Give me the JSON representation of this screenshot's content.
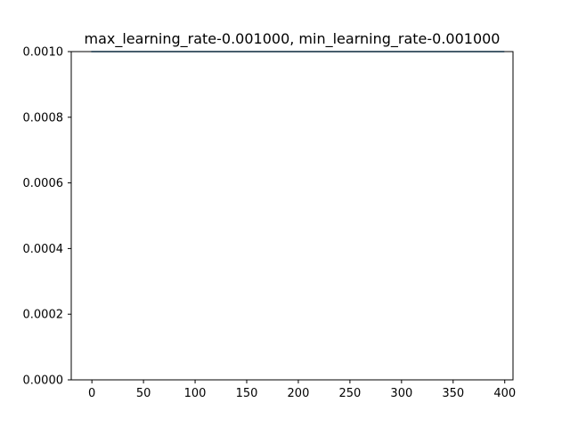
{
  "chart_data": {
    "type": "line",
    "title": "max_learning_rate-0.001000, min_learning_rate-0.001000",
    "xlabel": "",
    "ylabel": "",
    "xlim": [
      -20,
      408
    ],
    "ylim": [
      0,
      0.001
    ],
    "x_ticks": [
      0,
      50,
      100,
      150,
      200,
      250,
      300,
      350,
      400
    ],
    "x_tick_labels": [
      "0",
      "50",
      "100",
      "150",
      "200",
      "250",
      "300",
      "350",
      "400"
    ],
    "y_ticks": [
      0,
      0.0002,
      0.0004,
      0.0006,
      0.0008,
      0.001
    ],
    "y_tick_labels": [
      "0.0000",
      "0.0002",
      "0.0004",
      "0.0006",
      "0.0008",
      "0.0010"
    ],
    "grid": false,
    "series": [
      {
        "x": [
          0,
          399
        ],
        "y": [
          0.001,
          0.001
        ],
        "color": "#1f77b4"
      }
    ]
  }
}
